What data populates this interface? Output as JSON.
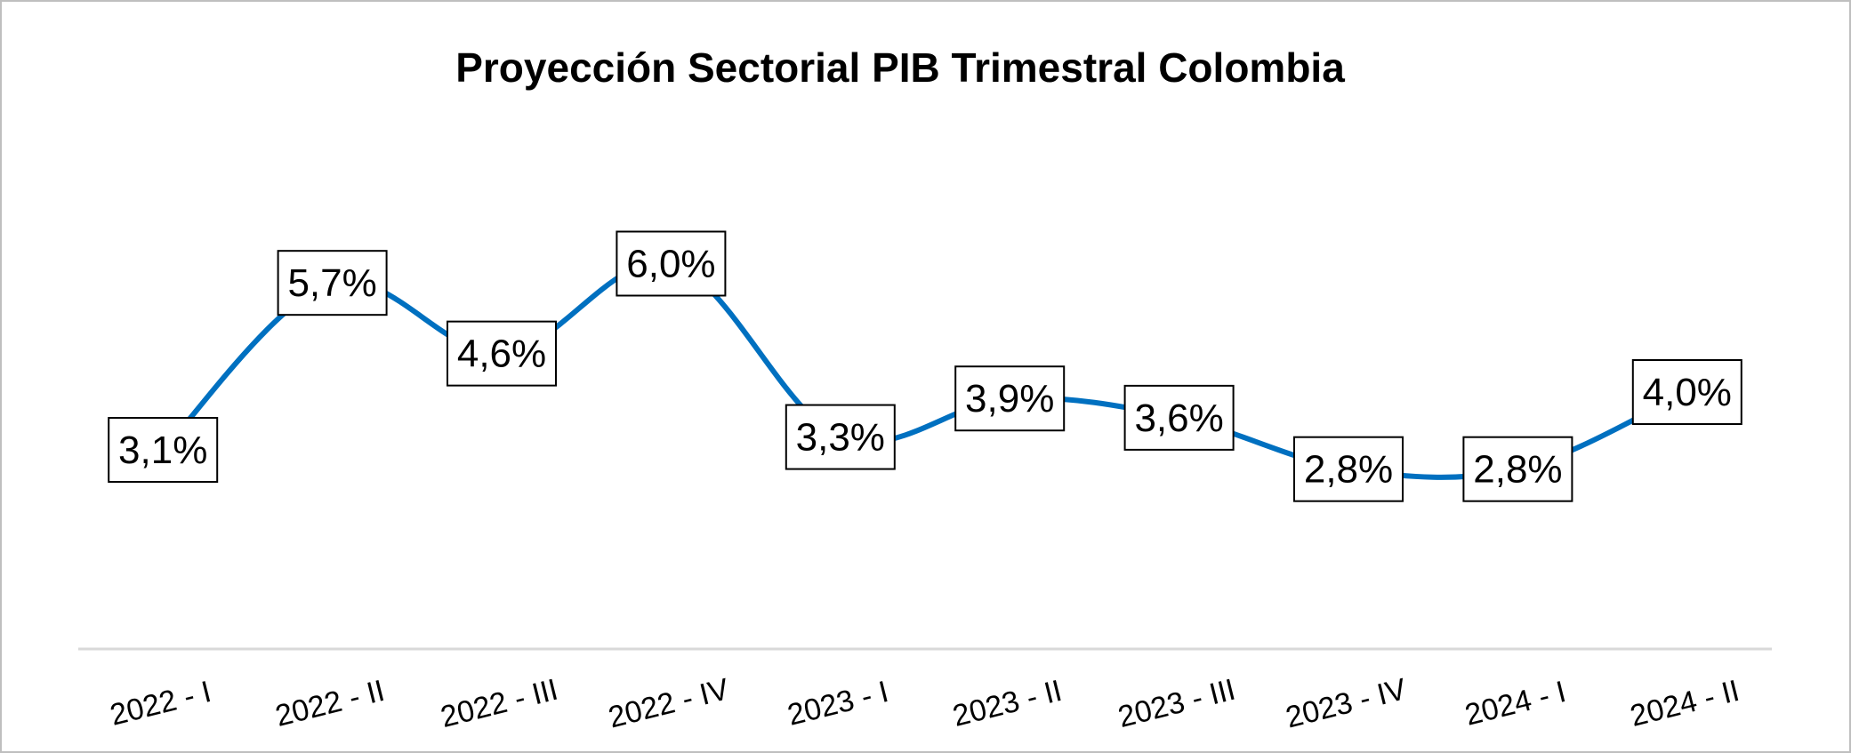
{
  "chart_data": {
    "type": "line",
    "title": "Proyección Sectorial PIB Trimestral Colombia",
    "xlabel": "",
    "ylabel": "",
    "categories": [
      "2022 - I",
      "2022 - II",
      "2022 - III",
      "2022 - IV",
      "2023 - I",
      "2023 - II",
      "2023 - III",
      "2023 - IV",
      "2024 - I",
      "2024 - II"
    ],
    "series": [
      {
        "values": [
          3.1,
          5.7,
          4.6,
          6.0,
          3.3,
          3.9,
          3.6,
          2.8,
          2.8,
          4.0
        ],
        "labels": [
          "3,1%",
          "5,7%",
          "4,6%",
          "6,0%",
          "3,3%",
          "3,9%",
          "3,6%",
          "2,8%",
          "2,8%",
          "4,0%"
        ],
        "color": "#0070C0"
      }
    ],
    "ylim": [
      0,
      8
    ],
    "grid": false,
    "smooth": true
  },
  "colors": {
    "line": "#0070C0",
    "axis": "#d9d9d9",
    "border": "#bfbfbf"
  }
}
